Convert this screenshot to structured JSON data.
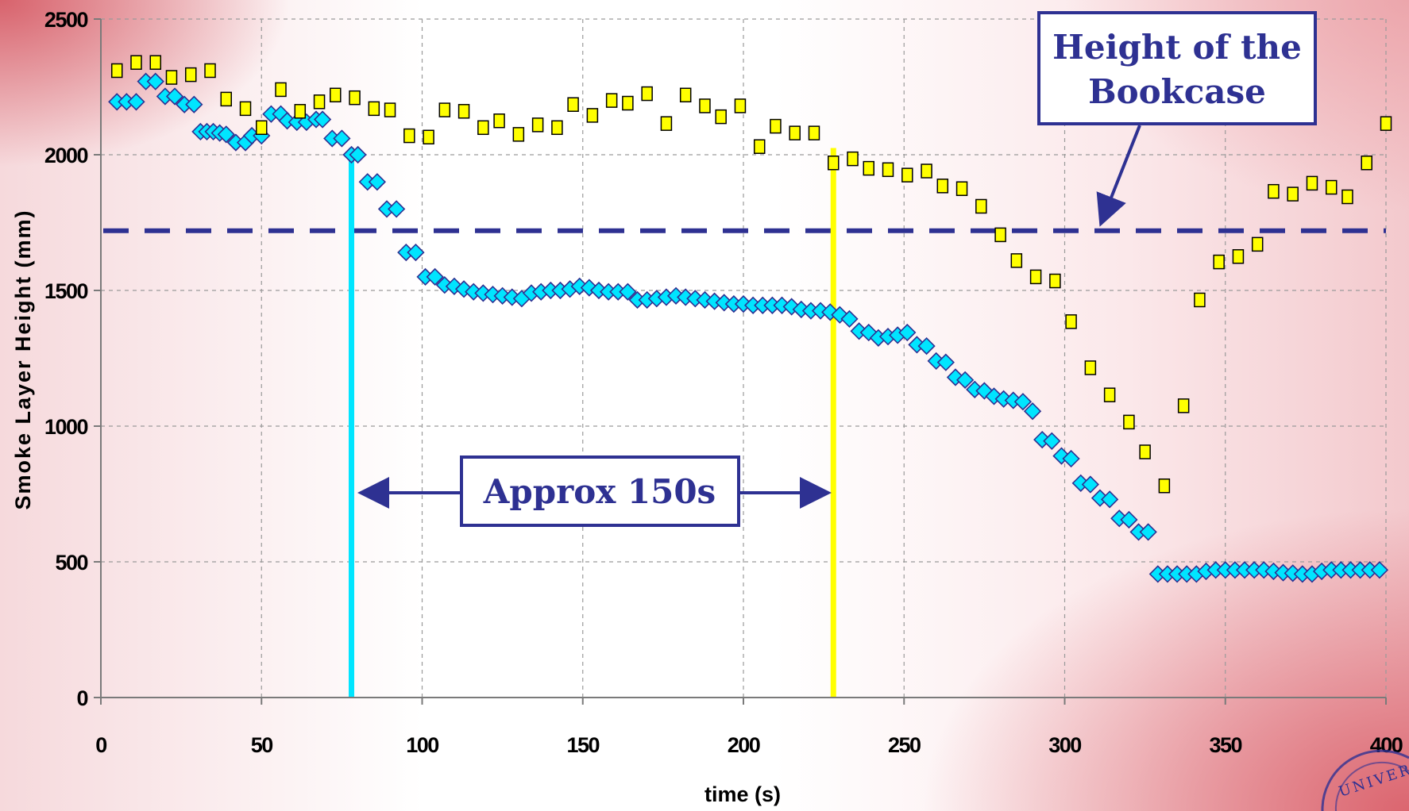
{
  "chart_data": {
    "type": "scatter",
    "xlabel": "time (s)",
    "ylabel": "Smoke Layer Height (mm)",
    "xlim": [
      0,
      400
    ],
    "ylim": [
      0,
      2500
    ],
    "xticks": [
      "0",
      "50",
      "100",
      "150",
      "200",
      "250",
      "300",
      "350",
      "400"
    ],
    "yticks": [
      "0",
      "500",
      "1000",
      "1500",
      "2000",
      "2500"
    ],
    "grid": true,
    "series": [
      {
        "marker": "diamond",
        "color": "#00e5ff",
        "points": [
          [
            5,
            2195
          ],
          [
            8,
            2195
          ],
          [
            11,
            2195
          ],
          [
            14,
            2270
          ],
          [
            17,
            2270
          ],
          [
            20,
            2215
          ],
          [
            23,
            2215
          ],
          [
            26,
            2185
          ],
          [
            29,
            2185
          ],
          [
            31,
            2085
          ],
          [
            33,
            2085
          ],
          [
            35,
            2085
          ],
          [
            37,
            2080
          ],
          [
            39,
            2075
          ],
          [
            42,
            2045
          ],
          [
            45,
            2045
          ],
          [
            47,
            2070
          ],
          [
            50,
            2070
          ],
          [
            53,
            2150
          ],
          [
            56,
            2150
          ],
          [
            58,
            2125
          ],
          [
            61,
            2120
          ],
          [
            64,
            2120
          ],
          [
            67,
            2130
          ],
          [
            69,
            2130
          ],
          [
            72,
            2060
          ],
          [
            75,
            2060
          ],
          [
            78,
            2000
          ],
          [
            80,
            2000
          ],
          [
            83,
            1900
          ],
          [
            86,
            1900
          ],
          [
            89,
            1800
          ],
          [
            92,
            1800
          ],
          [
            95,
            1640
          ],
          [
            98,
            1640
          ],
          [
            101,
            1550
          ],
          [
            104,
            1550
          ],
          [
            107,
            1520
          ],
          [
            110,
            1515
          ],
          [
            113,
            1505
          ],
          [
            116,
            1495
          ],
          [
            119,
            1490
          ],
          [
            122,
            1485
          ],
          [
            125,
            1480
          ],
          [
            128,
            1475
          ],
          [
            131,
            1470
          ],
          [
            134,
            1490
          ],
          [
            137,
            1495
          ],
          [
            140,
            1500
          ],
          [
            143,
            1500
          ],
          [
            146,
            1505
          ],
          [
            149,
            1515
          ],
          [
            152,
            1510
          ],
          [
            155,
            1500
          ],
          [
            158,
            1495
          ],
          [
            161,
            1495
          ],
          [
            164,
            1495
          ],
          [
            167,
            1465
          ],
          [
            170,
            1465
          ],
          [
            173,
            1470
          ],
          [
            176,
            1475
          ],
          [
            179,
            1480
          ],
          [
            182,
            1475
          ],
          [
            185,
            1470
          ],
          [
            188,
            1465
          ],
          [
            191,
            1460
          ],
          [
            194,
            1455
          ],
          [
            197,
            1450
          ],
          [
            200,
            1450
          ],
          [
            203,
            1445
          ],
          [
            206,
            1445
          ],
          [
            209,
            1445
          ],
          [
            212,
            1445
          ],
          [
            215,
            1440
          ],
          [
            218,
            1430
          ],
          [
            221,
            1425
          ],
          [
            224,
            1425
          ],
          [
            227,
            1420
          ],
          [
            230,
            1410
          ],
          [
            233,
            1395
          ],
          [
            236,
            1350
          ],
          [
            239,
            1345
          ],
          [
            242,
            1325
          ],
          [
            245,
            1330
          ],
          [
            248,
            1335
          ],
          [
            251,
            1345
          ],
          [
            254,
            1300
          ],
          [
            257,
            1295
          ],
          [
            260,
            1240
          ],
          [
            263,
            1235
          ],
          [
            266,
            1180
          ],
          [
            269,
            1170
          ],
          [
            272,
            1135
          ],
          [
            275,
            1130
          ],
          [
            278,
            1110
          ],
          [
            281,
            1100
          ],
          [
            284,
            1095
          ],
          [
            287,
            1090
          ],
          [
            290,
            1055
          ],
          [
            293,
            950
          ],
          [
            296,
            945
          ],
          [
            299,
            890
          ],
          [
            302,
            880
          ],
          [
            305,
            790
          ],
          [
            308,
            785
          ],
          [
            311,
            735
          ],
          [
            314,
            730
          ],
          [
            317,
            660
          ],
          [
            320,
            655
          ],
          [
            323,
            610
          ],
          [
            326,
            610
          ],
          [
            329,
            455
          ],
          [
            332,
            455
          ],
          [
            335,
            455
          ],
          [
            338,
            455
          ],
          [
            341,
            455
          ],
          [
            344,
            465
          ],
          [
            347,
            470
          ],
          [
            350,
            470
          ],
          [
            353,
            470
          ],
          [
            356,
            470
          ],
          [
            359,
            470
          ],
          [
            362,
            470
          ],
          [
            365,
            465
          ],
          [
            368,
            460
          ],
          [
            371,
            458
          ],
          [
            374,
            455
          ],
          [
            377,
            455
          ],
          [
            380,
            465
          ],
          [
            383,
            470
          ],
          [
            386,
            470
          ],
          [
            389,
            470
          ],
          [
            392,
            470
          ],
          [
            395,
            470
          ],
          [
            398,
            470
          ]
        ]
      },
      {
        "marker": "square",
        "color": "#ffff00",
        "points": [
          [
            5,
            2310
          ],
          [
            11,
            2340
          ],
          [
            17,
            2340
          ],
          [
            22,
            2285
          ],
          [
            28,
            2295
          ],
          [
            34,
            2310
          ],
          [
            39,
            2205
          ],
          [
            45,
            2170
          ],
          [
            50,
            2100
          ],
          [
            56,
            2240
          ],
          [
            62,
            2160
          ],
          [
            68,
            2195
          ],
          [
            73,
            2220
          ],
          [
            79,
            2210
          ],
          [
            85,
            2170
          ],
          [
            90,
            2165
          ],
          [
            96,
            2070
          ],
          [
            102,
            2065
          ],
          [
            107,
            2165
          ],
          [
            113,
            2160
          ],
          [
            119,
            2100
          ],
          [
            124,
            2125
          ],
          [
            130,
            2075
          ],
          [
            136,
            2110
          ],
          [
            142,
            2100
          ],
          [
            147,
            2185
          ],
          [
            153,
            2145
          ],
          [
            159,
            2200
          ],
          [
            164,
            2190
          ],
          [
            170,
            2225
          ],
          [
            176,
            2115
          ],
          [
            182,
            2220
          ],
          [
            188,
            2180
          ],
          [
            193,
            2140
          ],
          [
            199,
            2180
          ],
          [
            205,
            2030
          ],
          [
            210,
            2105
          ],
          [
            216,
            2080
          ],
          [
            222,
            2080
          ],
          [
            228,
            1970
          ],
          [
            234,
            1985
          ],
          [
            239,
            1950
          ],
          [
            245,
            1945
          ],
          [
            251,
            1925
          ],
          [
            257,
            1940
          ],
          [
            262,
            1885
          ],
          [
            268,
            1875
          ],
          [
            274,
            1810
          ],
          [
            280,
            1705
          ],
          [
            285,
            1610
          ],
          [
            291,
            1550
          ],
          [
            297,
            1535
          ],
          [
            302,
            1385
          ],
          [
            308,
            1215
          ],
          [
            314,
            1115
          ],
          [
            320,
            1015
          ],
          [
            325,
            905
          ],
          [
            331,
            780
          ],
          [
            337,
            1075
          ],
          [
            342,
            1465
          ],
          [
            348,
            1605
          ],
          [
            354,
            1625
          ],
          [
            360,
            1670
          ],
          [
            365,
            1865
          ],
          [
            371,
            1855
          ],
          [
            377,
            1895
          ],
          [
            383,
            1880
          ],
          [
            388,
            1845
          ],
          [
            394,
            1970
          ],
          [
            400,
            2115
          ]
        ]
      }
    ],
    "reference_line": {
      "y": 1720,
      "style": "dashed",
      "color": "#2e3192"
    },
    "vertical_markers": [
      {
        "x": 78,
        "color": "#00e5ff"
      },
      {
        "x": 228,
        "color": "#ffff00"
      }
    ],
    "annotations": [
      {
        "id": "bookcase",
        "lines": [
          "Height of the",
          "Bookcase"
        ]
      },
      {
        "id": "interval",
        "text": "Approx 150s"
      }
    ]
  },
  "logo": {
    "text": "UNIVER"
  }
}
